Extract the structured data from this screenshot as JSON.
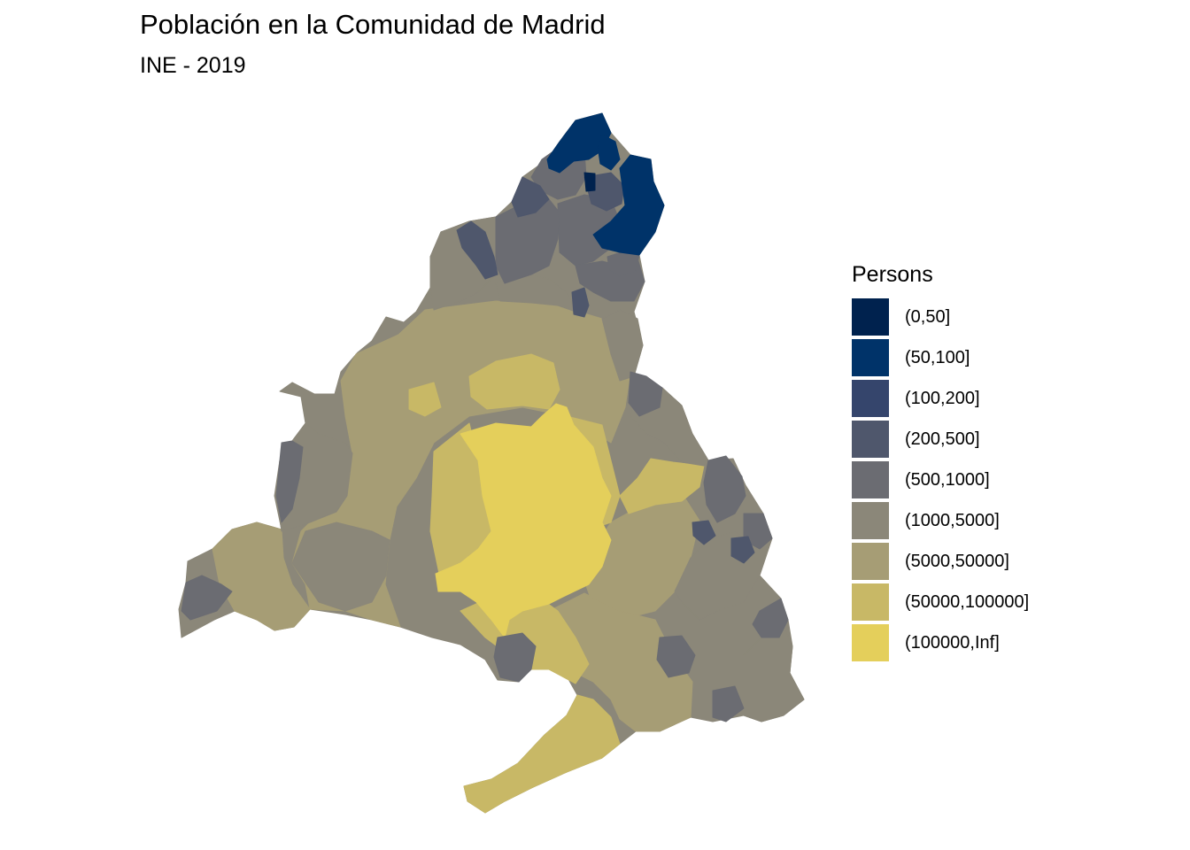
{
  "title": "Población en la Comunidad de Madrid",
  "subtitle": "INE - 2019",
  "legend": {
    "title": "Persons",
    "items": [
      {
        "label": "(0,50]",
        "color": "#00224e"
      },
      {
        "label": "(50,100]",
        "color": "#003369"
      },
      {
        "label": "(100,200]",
        "color": "#35456c"
      },
      {
        "label": "(200,500]",
        "color": "#4f576c"
      },
      {
        "label": "(500,1000]",
        "color": "#6b6c72"
      },
      {
        "label": "(1000,5000]",
        "color": "#8b8779"
      },
      {
        "label": "(5000,50000]",
        "color": "#a69d75"
      },
      {
        "label": "(50000,100000]",
        "color": "#c8b866"
      },
      {
        "label": "(100000,Inf]",
        "color": "#e4cf5b"
      }
    ]
  }
}
